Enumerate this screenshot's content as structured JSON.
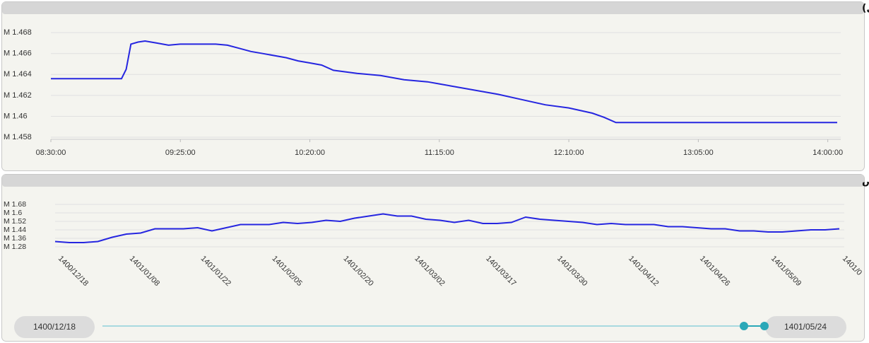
{
  "chart_data": [
    {
      "type": "line",
      "title": "شاخص کل (آخرین روز معاملاتی)",
      "color": "#2626e0",
      "x": [
        "08:30:00",
        "09:00:00",
        "09:02:00",
        "09:04:00",
        "09:07:00",
        "09:10:00",
        "09:15:00",
        "09:20:00",
        "09:25:00",
        "09:30:00",
        "09:40:00",
        "09:45:00",
        "09:50:00",
        "09:55:00",
        "10:00:00",
        "10:10:00",
        "10:15:00",
        "10:20:00",
        "10:25:00",
        "10:30:00",
        "10:40:00",
        "10:50:00",
        "11:00:00",
        "11:10:00",
        "11:15:00",
        "11:20:00",
        "11:30:00",
        "11:40:00",
        "11:50:00",
        "12:00:00",
        "12:10:00",
        "12:20:00",
        "12:25:00",
        "12:30:00",
        "13:00:00",
        "13:30:00",
        "14:04:00"
      ],
      "values": [
        1.4636,
        1.4636,
        1.4645,
        1.4669,
        1.4671,
        1.4672,
        1.467,
        1.4668,
        1.4669,
        1.4669,
        1.4669,
        1.4668,
        1.4665,
        1.4662,
        1.466,
        1.4656,
        1.4653,
        1.4651,
        1.4649,
        1.4644,
        1.4641,
        1.4639,
        1.4635,
        1.4633,
        1.4631,
        1.4629,
        1.4625,
        1.4621,
        1.4616,
        1.4611,
        1.4608,
        1.4603,
        1.4599,
        1.4594,
        1.4594,
        1.4594,
        1.4594
      ],
      "xlim": [
        "08:30:00",
        "14:04:00"
      ],
      "xticks": [
        "08:30:00",
        "09:25:00",
        "10:20:00",
        "11:15:00",
        "12:10:00",
        "13:05:00",
        "14:00:00"
      ],
      "ylim": [
        1.4578,
        1.4697
      ],
      "yticks": [
        {
          "value": 1.458,
          "label": "M 1.458"
        },
        {
          "value": 1.46,
          "label": "M 1.46"
        },
        {
          "value": 1.462,
          "label": "M 1.462"
        },
        {
          "value": 1.464,
          "label": "M 1.464"
        },
        {
          "value": 1.466,
          "label": "M 1.466"
        },
        {
          "value": 1.468,
          "label": "M 1.468"
        }
      ],
      "grid": true
    },
    {
      "type": "line",
      "title": "نمودار شاخص",
      "color": "#2626e0",
      "categories": [
        "1400/12/18",
        null,
        null,
        null,
        null,
        "1401/01/08",
        null,
        null,
        null,
        null,
        "1401/01/22",
        null,
        null,
        null,
        null,
        "1401/02/05",
        null,
        null,
        null,
        null,
        "1401/02/20",
        null,
        null,
        null,
        null,
        "1401/03/02",
        null,
        null,
        null,
        null,
        "1401/03/17",
        null,
        null,
        null,
        null,
        "1401/03/30",
        null,
        null,
        null,
        null,
        "1401/04/12",
        null,
        null,
        null,
        null,
        "1401/04/26",
        null,
        null,
        null,
        null,
        "1401/05/09",
        null,
        null,
        null,
        null,
        "1401/0"
      ],
      "values": [
        1.33,
        1.32,
        1.32,
        1.33,
        1.37,
        1.4,
        1.41,
        1.45,
        1.45,
        1.45,
        1.46,
        1.43,
        1.46,
        1.49,
        1.49,
        1.49,
        1.51,
        1.5,
        1.51,
        1.53,
        1.52,
        1.55,
        1.57,
        1.59,
        1.57,
        1.57,
        1.54,
        1.53,
        1.51,
        1.53,
        1.5,
        1.5,
        1.51,
        1.56,
        1.54,
        1.53,
        1.52,
        1.51,
        1.49,
        1.5,
        1.49,
        1.49,
        1.49,
        1.47,
        1.47,
        1.46,
        1.45,
        1.45,
        1.43,
        1.43,
        1.42,
        1.42,
        1.43,
        1.44,
        1.44,
        1.45
      ],
      "ylim": [
        1.26,
        1.69
      ],
      "yticks": [
        {
          "value": 1.28,
          "label": "M 1.28"
        },
        {
          "value": 1.36,
          "label": "M 1.36"
        },
        {
          "value": 1.44,
          "label": "M 1.44"
        },
        {
          "value": 1.52,
          "label": "M 1.52"
        },
        {
          "value": 1.6,
          "label": "M 1.6"
        },
        {
          "value": 1.68,
          "label": "M 1.68"
        }
      ],
      "grid": true
    }
  ],
  "range_slider": {
    "start": "1400/12/18",
    "end": "1401/05/24"
  }
}
